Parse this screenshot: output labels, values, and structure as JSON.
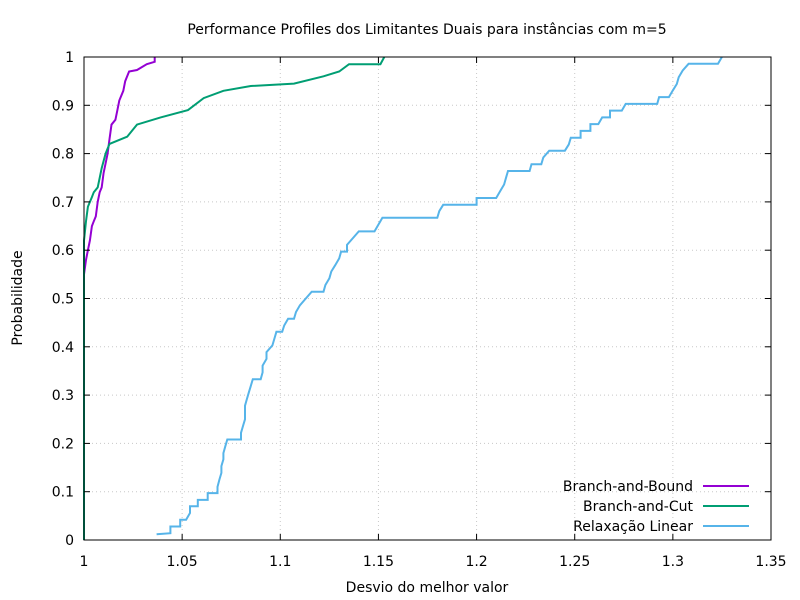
{
  "chart_data": {
    "type": "line",
    "title": "Performance Profiles dos Limitantes Duais para instâncias com m=5",
    "xlabel": "Desvio do melhor valor",
    "ylabel": "Probabilidade",
    "xlim": [
      1,
      1.35
    ],
    "ylim": [
      0,
      1
    ],
    "xticks": [
      "1",
      "1.05",
      "1.1",
      "1.15",
      "1.2",
      "1.25",
      "1.3",
      "1.35"
    ],
    "yticks": [
      "0",
      "0.1",
      "0.2",
      "0.3",
      "0.4",
      "0.5",
      "0.6",
      "0.7",
      "0.8",
      "0.9",
      "1"
    ],
    "grid": true,
    "legend_position": "bottom-right",
    "series": [
      {
        "name": "Branch-and-Bound",
        "color": "#9400d3",
        "points": [
          [
            1.0,
            0.0
          ],
          [
            1.0,
            0.55
          ],
          [
            1.001,
            0.58
          ],
          [
            1.002,
            0.6
          ],
          [
            1.003,
            0.62
          ],
          [
            1.004,
            0.65
          ],
          [
            1.005,
            0.66
          ],
          [
            1.006,
            0.67
          ],
          [
            1.007,
            0.7
          ],
          [
            1.008,
            0.72
          ],
          [
            1.009,
            0.73
          ],
          [
            1.01,
            0.76
          ],
          [
            1.011,
            0.78
          ],
          [
            1.012,
            0.8
          ],
          [
            1.013,
            0.83
          ],
          [
            1.014,
            0.86
          ],
          [
            1.016,
            0.87
          ],
          [
            1.017,
            0.89
          ],
          [
            1.018,
            0.91
          ],
          [
            1.02,
            0.93
          ],
          [
            1.021,
            0.95
          ],
          [
            1.023,
            0.97
          ],
          [
            1.027,
            0.973
          ],
          [
            1.032,
            0.985
          ],
          [
            1.036,
            0.99
          ],
          [
            1.036,
            1.0
          ]
        ]
      },
      {
        "name": "Branch-and-Cut",
        "color": "#009e73",
        "points": [
          [
            1.0,
            0.0
          ],
          [
            1.0,
            0.62
          ],
          [
            1.001,
            0.66
          ],
          [
            1.002,
            0.69
          ],
          [
            1.004,
            0.71
          ],
          [
            1.005,
            0.72
          ],
          [
            1.007,
            0.73
          ],
          [
            1.008,
            0.75
          ],
          [
            1.009,
            0.77
          ],
          [
            1.011,
            0.8
          ],
          [
            1.013,
            0.82
          ],
          [
            1.022,
            0.835
          ],
          [
            1.027,
            0.86
          ],
          [
            1.039,
            0.875
          ],
          [
            1.053,
            0.89
          ],
          [
            1.061,
            0.915
          ],
          [
            1.071,
            0.93
          ],
          [
            1.085,
            0.94
          ],
          [
            1.107,
            0.945
          ],
          [
            1.122,
            0.96
          ],
          [
            1.13,
            0.97
          ],
          [
            1.135,
            0.985
          ],
          [
            1.151,
            0.985
          ],
          [
            1.153,
            1.0
          ]
        ]
      },
      {
        "name": "Relaxação Linear",
        "color": "#56b4e9",
        "points": [
          [
            1.037,
            0.012
          ],
          [
            1.044,
            0.014
          ],
          [
            1.044,
            0.028
          ],
          [
            1.049,
            0.028
          ],
          [
            1.049,
            0.042
          ],
          [
            1.052,
            0.042
          ],
          [
            1.054,
            0.056
          ],
          [
            1.054,
            0.07
          ],
          [
            1.058,
            0.07
          ],
          [
            1.058,
            0.083
          ],
          [
            1.063,
            0.083
          ],
          [
            1.063,
            0.097
          ],
          [
            1.068,
            0.097
          ],
          [
            1.068,
            0.11
          ],
          [
            1.069,
            0.125
          ],
          [
            1.07,
            0.139
          ],
          [
            1.07,
            0.153
          ],
          [
            1.071,
            0.167
          ],
          [
            1.071,
            0.18
          ],
          [
            1.072,
            0.194
          ],
          [
            1.073,
            0.208
          ],
          [
            1.08,
            0.208
          ],
          [
            1.08,
            0.222
          ],
          [
            1.081,
            0.236
          ],
          [
            1.082,
            0.25
          ],
          [
            1.082,
            0.264
          ],
          [
            1.082,
            0.278
          ],
          [
            1.083,
            0.292
          ],
          [
            1.084,
            0.306
          ],
          [
            1.085,
            0.319
          ],
          [
            1.086,
            0.333
          ],
          [
            1.09,
            0.333
          ],
          [
            1.091,
            0.347
          ],
          [
            1.091,
            0.361
          ],
          [
            1.093,
            0.375
          ],
          [
            1.093,
            0.389
          ],
          [
            1.096,
            0.403
          ],
          [
            1.097,
            0.417
          ],
          [
            1.098,
            0.431
          ],
          [
            1.101,
            0.431
          ],
          [
            1.102,
            0.444
          ],
          [
            1.104,
            0.458
          ],
          [
            1.107,
            0.458
          ],
          [
            1.108,
            0.472
          ],
          [
            1.11,
            0.486
          ],
          [
            1.113,
            0.5
          ],
          [
            1.116,
            0.514
          ],
          [
            1.122,
            0.514
          ],
          [
            1.123,
            0.528
          ],
          [
            1.125,
            0.542
          ],
          [
            1.126,
            0.556
          ],
          [
            1.128,
            0.569
          ],
          [
            1.13,
            0.583
          ],
          [
            1.131,
            0.597
          ],
          [
            1.134,
            0.597
          ],
          [
            1.134,
            0.611
          ],
          [
            1.137,
            0.625
          ],
          [
            1.14,
            0.639
          ],
          [
            1.148,
            0.639
          ],
          [
            1.15,
            0.653
          ],
          [
            1.152,
            0.667
          ],
          [
            1.18,
            0.667
          ],
          [
            1.181,
            0.681
          ],
          [
            1.183,
            0.694
          ],
          [
            1.2,
            0.694
          ],
          [
            1.2,
            0.708
          ],
          [
            1.21,
            0.708
          ],
          [
            1.212,
            0.722
          ],
          [
            1.214,
            0.736
          ],
          [
            1.215,
            0.75
          ],
          [
            1.216,
            0.764
          ],
          [
            1.227,
            0.764
          ],
          [
            1.228,
            0.778
          ],
          [
            1.233,
            0.778
          ],
          [
            1.234,
            0.792
          ],
          [
            1.237,
            0.806
          ],
          [
            1.245,
            0.806
          ],
          [
            1.247,
            0.819
          ],
          [
            1.248,
            0.833
          ],
          [
            1.253,
            0.833
          ],
          [
            1.253,
            0.847
          ],
          [
            1.258,
            0.847
          ],
          [
            1.258,
            0.861
          ],
          [
            1.262,
            0.861
          ],
          [
            1.264,
            0.875
          ],
          [
            1.268,
            0.875
          ],
          [
            1.268,
            0.889
          ],
          [
            1.274,
            0.889
          ],
          [
            1.276,
            0.903
          ],
          [
            1.292,
            0.903
          ],
          [
            1.293,
            0.917
          ],
          [
            1.298,
            0.917
          ],
          [
            1.3,
            0.931
          ],
          [
            1.302,
            0.944
          ],
          [
            1.303,
            0.958
          ],
          [
            1.305,
            0.972
          ],
          [
            1.308,
            0.986
          ],
          [
            1.323,
            0.986
          ],
          [
            1.325,
            1.0
          ]
        ]
      }
    ]
  }
}
